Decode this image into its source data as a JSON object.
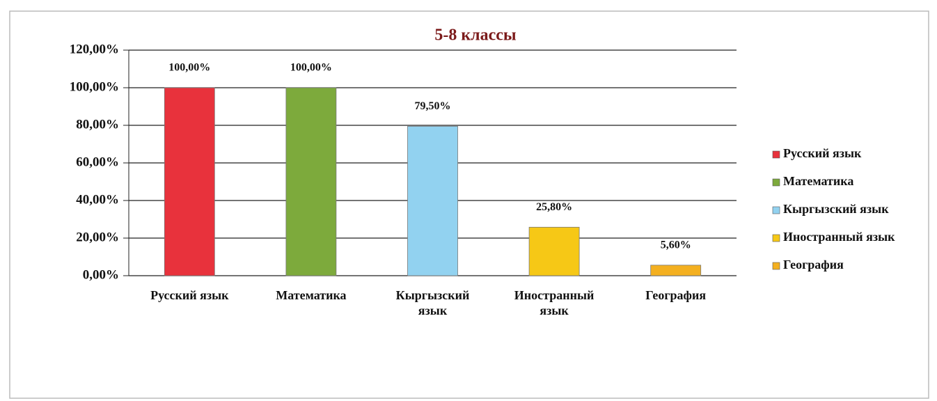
{
  "chart_data": {
    "type": "bar",
    "title": "5-8 классы",
    "categories": [
      "Русский язык",
      "Математика",
      "Кыргызский язык",
      "Иностранный язык",
      "География"
    ],
    "values": [
      100,
      100,
      79.5,
      25.8,
      5.6
    ],
    "value_labels": [
      "100,00%",
      "100,00%",
      "79,50%",
      "25,80%",
      "5,60%"
    ],
    "colors": [
      "#e8323c",
      "#7daa3c",
      "#92d2f0",
      "#f6c816",
      "#f4b020"
    ],
    "ylim": [
      0,
      120
    ],
    "yticks": [
      {
        "value": 0,
        "label": "0,00%"
      },
      {
        "value": 20,
        "label": "20,00%"
      },
      {
        "value": 40,
        "label": "40,00%"
      },
      {
        "value": 60,
        "label": "60,00%"
      },
      {
        "value": 80,
        "label": "80,00%"
      },
      {
        "value": 100,
        "label": "100,00%"
      },
      {
        "value": 120,
        "label": "120,00%"
      }
    ],
    "grid": true,
    "legend": "right"
  }
}
